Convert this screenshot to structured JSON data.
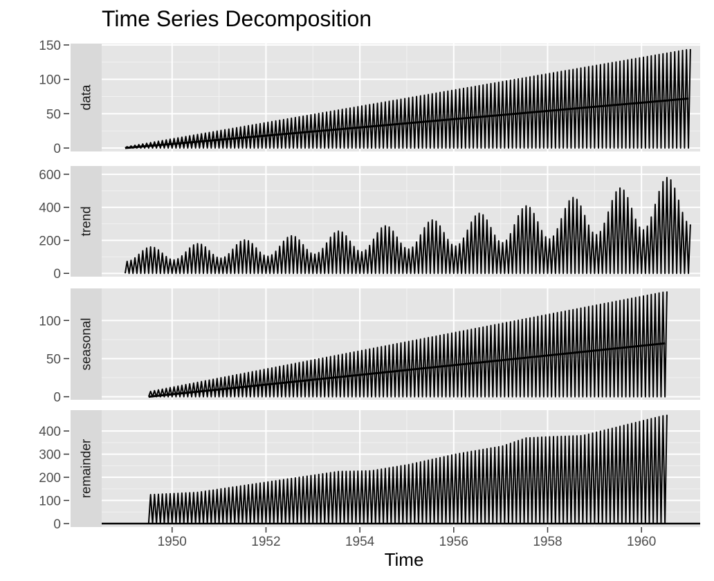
{
  "chart_data": {
    "type": "line",
    "title": "Time Series Decomposition",
    "xlabel": "Time",
    "xlim": [
      1948.5,
      1961.25
    ],
    "x_ticks": [
      1950,
      1952,
      1954,
      1956,
      1958,
      1960
    ],
    "grid": true,
    "theme": "ggplot2 grey facets with left strips",
    "line_color": "#000000",
    "panel_background": "#e5e5e5",
    "strip_background": "#d9d9d9",
    "facets": [
      {
        "name": "data",
        "ylim": [
          -5,
          152
        ],
        "y_ticks": [
          0,
          50,
          100,
          150
        ],
        "start": 1949.0,
        "end": 1961.0,
        "peak_range": [
          2,
          144
        ],
        "floor": 0,
        "midline_end": 72
      },
      {
        "name": "trend",
        "ylim": [
          -20,
          650
        ],
        "y_ticks": [
          0,
          200,
          400,
          600
        ],
        "start": 1949.0,
        "end": 1961.0,
        "peak_start": 112,
        "growth_rate": 0.117,
        "seasonal_amplitude": 0.35,
        "floor": 0
      },
      {
        "name": "seasonal",
        "ylim": [
          -4,
          142
        ],
        "y_ticks": [
          0,
          50,
          100
        ],
        "start": 1949.5,
        "end": 1960.5,
        "peak_range": [
          7,
          138
        ],
        "floor": 0,
        "midline_end": 70
      },
      {
        "name": "remainder",
        "ylim": [
          -15,
          490
        ],
        "y_ticks": [
          0,
          100,
          200,
          300,
          400
        ],
        "start": 1949.5,
        "end": 1960.5,
        "floor": 0,
        "baseline": 0,
        "level_profile": [
          [
            1949.5,
            125
          ],
          [
            1950.5,
            135
          ],
          [
            1951.5,
            165
          ],
          [
            1952.5,
            195
          ],
          [
            1953.5,
            225
          ],
          [
            1954.2,
            228
          ],
          [
            1955.0,
            255
          ],
          [
            1956.0,
            300
          ],
          [
            1957.0,
            335
          ],
          [
            1957.5,
            370
          ],
          [
            1958.0,
            375
          ],
          [
            1958.7,
            380
          ],
          [
            1959.5,
            420
          ],
          [
            1960.5,
            470
          ]
        ]
      }
    ]
  }
}
